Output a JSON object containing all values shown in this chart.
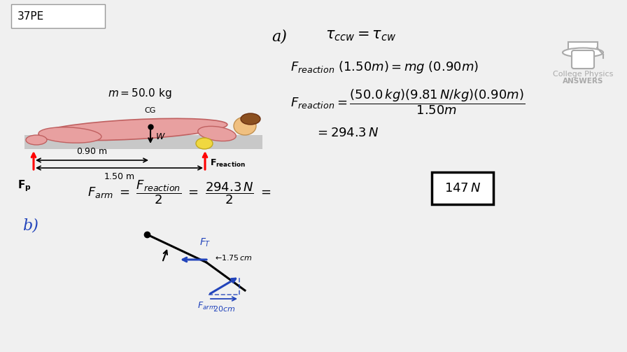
{
  "bg_color": "#f0f0f0",
  "title_box_text": "37PE",
  "section_a_label": "a)",
  "section_b_label": "b)",
  "logo_text_line1": "College Physics",
  "logo_text_line2": "ANSWERS"
}
